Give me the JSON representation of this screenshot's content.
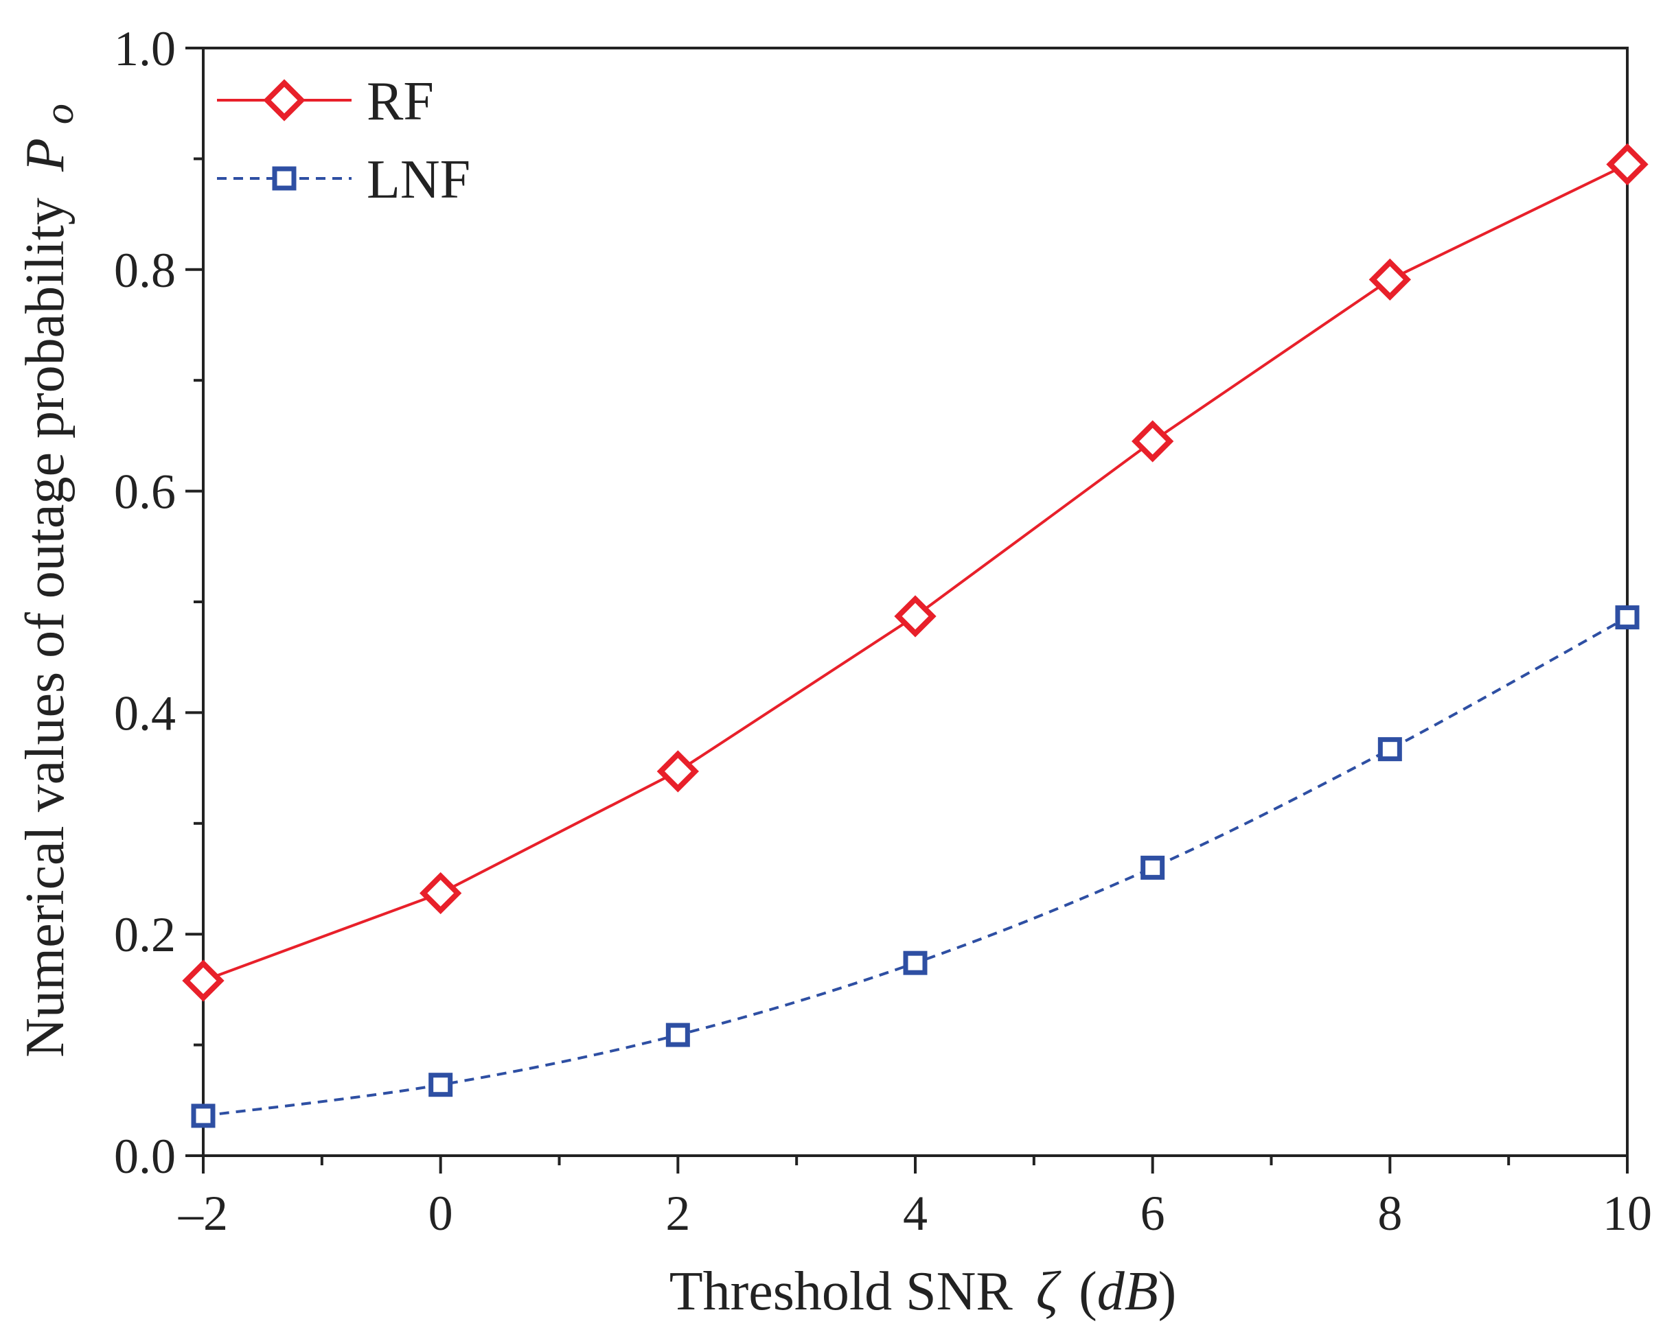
{
  "chart_data": {
    "type": "line",
    "title": "",
    "xlabel": "Threshold SNR",
    "xlabel_symbol": "ζ",
    "xlabel_unit": "(dB)",
    "ylabel": "Numerical values of outage probability",
    "ylabel_symbol": "P",
    "ylabel_subscript": "o",
    "x": [
      -2,
      0,
      2,
      4,
      6,
      8,
      10
    ],
    "xlim": [
      -2,
      10
    ],
    "ylim": [
      0,
      1.0
    ],
    "x_ticks": [
      -2,
      0,
      2,
      4,
      6,
      8,
      10
    ],
    "x_tick_labels": [
      "–2",
      "0",
      "2",
      "4",
      "6",
      "8",
      "10"
    ],
    "y_ticks": [
      0.0,
      0.2,
      0.4,
      0.6,
      0.8,
      1.0
    ],
    "y_tick_labels": [
      "0.0",
      "0.2",
      "0.4",
      "0.6",
      "0.8",
      "1.0"
    ],
    "grid": false,
    "legend_position": "top-left",
    "series": [
      {
        "name": "RF",
        "marker": "diamond",
        "line_style": "solid",
        "color": "#e8202a",
        "values": [
          0.158,
          0.237,
          0.347,
          0.487,
          0.645,
          0.791,
          0.895
        ]
      },
      {
        "name": "LNF",
        "marker": "square",
        "line_style": "dashed",
        "color": "#2e4fa3",
        "values": [
          0.036,
          0.064,
          0.109,
          0.174,
          0.26,
          0.367,
          0.486
        ]
      }
    ]
  }
}
